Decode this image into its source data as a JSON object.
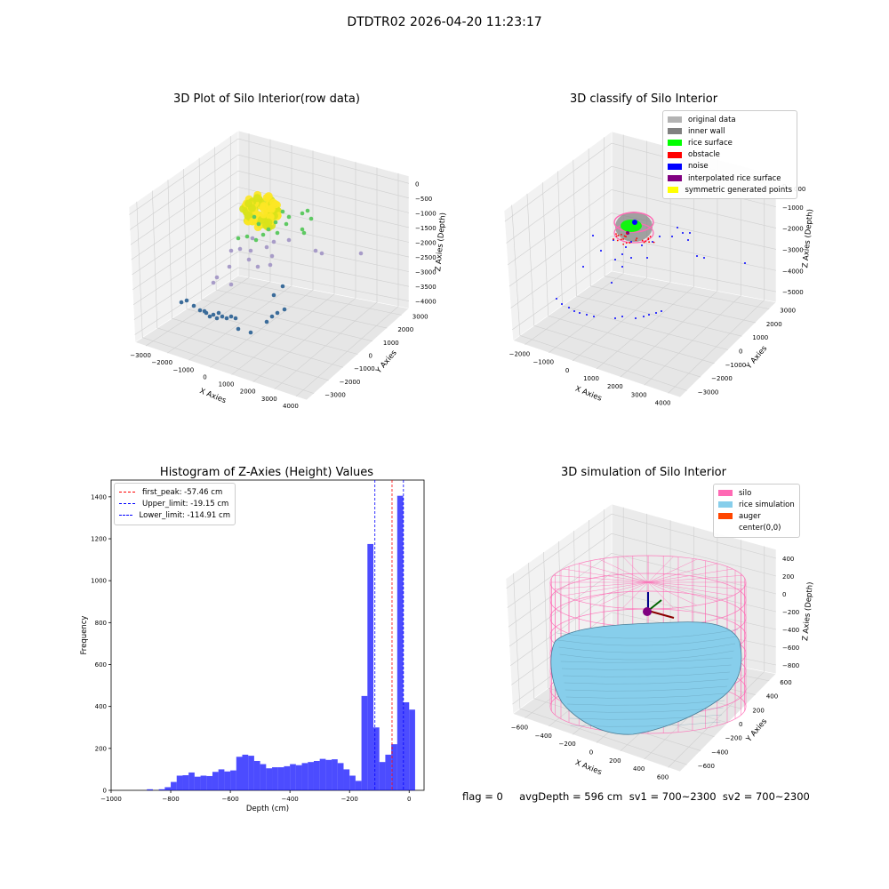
{
  "figure": {
    "suptitle": "DTDTR02 2026-04-20 11:23:17",
    "status_line": "flag = 0     avgDepth = 596 cm  sv1 = 700~2300  sv2 = 700~2300"
  },
  "chart_data": [
    {
      "type": "scatter",
      "title": "3D Plot of Silo Interior(row data)",
      "xlabel": "X Axies",
      "ylabel": "Y Axies",
      "zlabel": "Z Axies (Depth)",
      "x_ticks": [
        "−3000",
        "−2000",
        "−1000",
        "0",
        "1000",
        "2000",
        "3000",
        "4000"
      ],
      "y_ticks": [
        "−3000",
        "−2000",
        "−1000",
        "0",
        "1000",
        "2000",
        "3000"
      ],
      "z_ticks": [
        "0",
        "−500",
        "−1000",
        "−1500",
        "−2000",
        "−2500",
        "−3000",
        "−3500",
        "−4000"
      ],
      "colormap": "viridis (by depth)",
      "grid": true
    },
    {
      "type": "scatter",
      "title": "3D classify of Silo Interior",
      "xlabel": "X Axies",
      "ylabel": "Y Axies",
      "zlabel": "Z Axies (Depth)",
      "x_ticks": [
        "−2000",
        "−1000",
        "0",
        "1000",
        "2000",
        "3000",
        "4000"
      ],
      "y_ticks": [
        "−3000",
        "−2000",
        "−1000",
        "0",
        "1000",
        "2000",
        "3000"
      ],
      "z_ticks": [
        "0",
        "−1000",
        "−2000",
        "−3000",
        "−4000",
        "−5000"
      ],
      "z_ticks_partial": [
        "000"
      ],
      "legend_position": "top-right",
      "legend": [
        {
          "label": "original data",
          "color": "#b3b3b3"
        },
        {
          "label": "inner wall",
          "color": "#808080"
        },
        {
          "label": "rice surface",
          "color": "#00ff00"
        },
        {
          "label": "obstacle",
          "color": "#ff0000"
        },
        {
          "label": "noise",
          "color": "#0000ff"
        },
        {
          "label": "interpolated rice surface",
          "color": "#800080"
        },
        {
          "label": "symmetric generated points",
          "color": "#ffff00"
        }
      ],
      "grid": true
    },
    {
      "type": "bar",
      "title": "Histogram of Z-Axies (Height) Values",
      "xlabel": "Depth (cm)",
      "ylabel": "Frequency",
      "bin_width": 20,
      "bins": [
        {
          "x0": -880,
          "count": 5
        },
        {
          "x0": -860,
          "count": 0
        },
        {
          "x0": -840,
          "count": 5
        },
        {
          "x0": -820,
          "count": 15
        },
        {
          "x0": -800,
          "count": 40
        },
        {
          "x0": -780,
          "count": 70
        },
        {
          "x0": -760,
          "count": 72
        },
        {
          "x0": -740,
          "count": 85
        },
        {
          "x0": -720,
          "count": 65
        },
        {
          "x0": -700,
          "count": 70
        },
        {
          "x0": -680,
          "count": 68
        },
        {
          "x0": -660,
          "count": 88
        },
        {
          "x0": -640,
          "count": 100
        },
        {
          "x0": -620,
          "count": 90
        },
        {
          "x0": -600,
          "count": 95
        },
        {
          "x0": -580,
          "count": 160
        },
        {
          "x0": -560,
          "count": 170
        },
        {
          "x0": -540,
          "count": 165
        },
        {
          "x0": -520,
          "count": 140
        },
        {
          "x0": -500,
          "count": 125
        },
        {
          "x0": -480,
          "count": 105
        },
        {
          "x0": -460,
          "count": 110
        },
        {
          "x0": -440,
          "count": 110
        },
        {
          "x0": -420,
          "count": 115
        },
        {
          "x0": -400,
          "count": 125
        },
        {
          "x0": -380,
          "count": 120
        },
        {
          "x0": -360,
          "count": 130
        },
        {
          "x0": -340,
          "count": 135
        },
        {
          "x0": -320,
          "count": 140
        },
        {
          "x0": -300,
          "count": 150
        },
        {
          "x0": -280,
          "count": 145
        },
        {
          "x0": -260,
          "count": 148
        },
        {
          "x0": -240,
          "count": 130
        },
        {
          "x0": -220,
          "count": 100
        },
        {
          "x0": -200,
          "count": 70
        },
        {
          "x0": -180,
          "count": 45
        },
        {
          "x0": -160,
          "count": 450
        },
        {
          "x0": -140,
          "count": 1175
        },
        {
          "x0": -120,
          "count": 300
        },
        {
          "x0": -100,
          "count": 135
        },
        {
          "x0": -80,
          "count": 170
        },
        {
          "x0": -60,
          "count": 220
        },
        {
          "x0": -40,
          "count": 1405
        },
        {
          "x0": -20,
          "count": 420
        },
        {
          "x0": 0,
          "count": 385
        }
      ],
      "xlim": [
        -1000,
        50
      ],
      "ylim": [
        0,
        1480
      ],
      "x_ticks": [
        -1000,
        -800,
        -600,
        -400,
        -200,
        0
      ],
      "x_tick_labels": [
        "−1000",
        "−800",
        "−600",
        "−400",
        "−200",
        "0"
      ],
      "y_ticks": [
        0,
        200,
        400,
        600,
        800,
        1000,
        1200,
        1400
      ],
      "bar_color": "#0000ff",
      "vlines": [
        {
          "label": "first_peak: -57.46 cm",
          "x": -57.46,
          "color": "#ff0000"
        },
        {
          "label": "Upper_limit: -19.15 cm",
          "x": -19.15,
          "color": "#0000ff"
        },
        {
          "label": "Lower_limit: -114.91 cm",
          "x": -114.91,
          "color": "#0000ff"
        }
      ],
      "legend_position": "top-left",
      "grid": false
    },
    {
      "type": "surface",
      "title": "3D simulation of Silo Interior",
      "xlabel": "X Axies",
      "ylabel": "Y Axies",
      "zlabel": "Z Axies (Depth)",
      "x_ticks": [
        "−600",
        "−400",
        "−200",
        "0",
        "200",
        "400",
        "600"
      ],
      "y_ticks": [
        "−600",
        "−400",
        "−200",
        "0",
        "200",
        "400",
        "600"
      ],
      "z_ticks": [
        "400",
        "200",
        "0",
        "−200",
        "−400",
        "−600",
        "−800"
      ],
      "legend_position": "top-right",
      "legend": [
        {
          "label": "silo",
          "color": "#ff69b4"
        },
        {
          "label": "rice simulation",
          "color": "#87ceeb"
        },
        {
          "label": "auger",
          "color": "#ff4500"
        },
        {
          "label": "center(0,0)",
          "color": "none"
        }
      ],
      "grid": true
    }
  ]
}
